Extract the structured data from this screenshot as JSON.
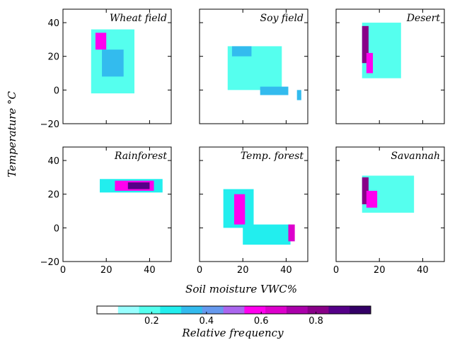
{
  "figure": {
    "xlabel": "Soil moisture VWC%",
    "ylabel": "Temperature °C",
    "colorbar_label": "Relative frequency"
  },
  "colorbar": {
    "ticks": [
      {
        "value": 0.2,
        "label": "0.2"
      },
      {
        "value": 0.4,
        "label": "0.4"
      },
      {
        "value": 0.6,
        "label": "0.6"
      },
      {
        "value": 0.8,
        "label": "0.8"
      }
    ],
    "range": [
      0,
      1
    ],
    "colors": [
      "#ffffff",
      "#99ffff",
      "#55ffee",
      "#22eeee",
      "#33bbee",
      "#6699ee",
      "#aa66ee",
      "#ff00ee",
      "#dd00cc",
      "#aa00aa",
      "#880088",
      "#550088",
      "#330066"
    ]
  },
  "chart_data": [
    {
      "type": "heatmap",
      "title": "Wheat field",
      "xlim": [
        0,
        50
      ],
      "ylim": [
        -20,
        48
      ],
      "xticks": [],
      "yticks": [
        "40",
        "20",
        "0",
        "−20"
      ],
      "regions": [
        {
          "x": [
            13,
            33
          ],
          "y": [
            -2,
            36
          ],
          "value": 0.2
        },
        {
          "x": [
            15,
            20
          ],
          "y": [
            24,
            34
          ],
          "value": 0.55
        },
        {
          "x": [
            18,
            28
          ],
          "y": [
            8,
            24
          ],
          "value": 0.3
        }
      ]
    },
    {
      "type": "heatmap",
      "title": "Soy field",
      "xlim": [
        0,
        50
      ],
      "ylim": [
        -20,
        48
      ],
      "xticks": [],
      "yticks": [],
      "regions": [
        {
          "x": [
            13,
            38
          ],
          "y": [
            0,
            26
          ],
          "value": 0.2
        },
        {
          "x": [
            15,
            24
          ],
          "y": [
            20,
            26
          ],
          "value": 0.35
        },
        {
          "x": [
            28,
            41
          ],
          "y": [
            -3,
            2
          ],
          "value": 0.3
        },
        {
          "x": [
            45,
            47
          ],
          "y": [
            -6,
            0
          ],
          "value": 0.3
        }
      ]
    },
    {
      "type": "heatmap",
      "title": "Desert",
      "xlim": [
        0,
        50
      ],
      "ylim": [
        -20,
        48
      ],
      "xticks": [],
      "yticks": [],
      "regions": [
        {
          "x": [
            12,
            30
          ],
          "y": [
            7,
            40
          ],
          "value": 0.2
        },
        {
          "x": [
            12,
            15
          ],
          "y": [
            16,
            38
          ],
          "value": 0.85
        },
        {
          "x": [
            14,
            17
          ],
          "y": [
            10,
            22
          ],
          "value": 0.6
        }
      ]
    },
    {
      "type": "heatmap",
      "title": "Rainforest",
      "xlim": [
        0,
        50
      ],
      "ylim": [
        -20,
        48
      ],
      "xticks": [
        "0",
        "20",
        "40"
      ],
      "yticks": [
        "40",
        "20",
        "0",
        "−20"
      ],
      "regions": [
        {
          "x": [
            17,
            46
          ],
          "y": [
            21,
            29
          ],
          "value": 0.25
        },
        {
          "x": [
            24,
            42
          ],
          "y": [
            22,
            28
          ],
          "value": 0.6
        },
        {
          "x": [
            30,
            40
          ],
          "y": [
            23,
            27
          ],
          "value": 0.9
        }
      ]
    },
    {
      "type": "heatmap",
      "title": "Temp. forest",
      "xlim": [
        0,
        50
      ],
      "ylim": [
        -20,
        48
      ],
      "xticks": [
        "0",
        "20",
        "40"
      ],
      "yticks": [],
      "regions": [
        {
          "x": [
            11,
            25
          ],
          "y": [
            0,
            23
          ],
          "value": 0.25
        },
        {
          "x": [
            16,
            21
          ],
          "y": [
            2,
            20
          ],
          "value": 0.55
        },
        {
          "x": [
            20,
            42
          ],
          "y": [
            -10,
            2
          ],
          "value": 0.25
        },
        {
          "x": [
            41,
            44
          ],
          "y": [
            -8,
            2
          ],
          "value": 0.7
        }
      ]
    },
    {
      "type": "heatmap",
      "title": "Savannah",
      "xlim": [
        0,
        50
      ],
      "ylim": [
        -20,
        48
      ],
      "xticks": [
        "0",
        "20",
        "40"
      ],
      "yticks": [],
      "regions": [
        {
          "x": [
            12,
            36
          ],
          "y": [
            9,
            31
          ],
          "value": 0.2
        },
        {
          "x": [
            12,
            15
          ],
          "y": [
            14,
            30
          ],
          "value": 0.85
        },
        {
          "x": [
            14,
            19
          ],
          "y": [
            12,
            22
          ],
          "value": 0.55
        }
      ]
    }
  ]
}
